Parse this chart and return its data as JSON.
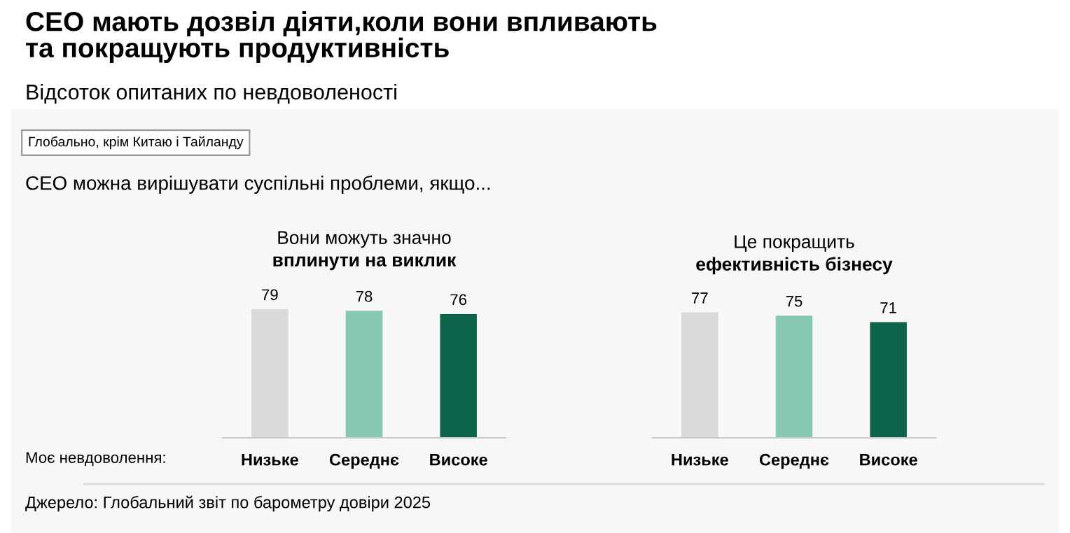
{
  "chart_data": [
    {
      "type": "other",
      "title": "СЕО мають дозвіл діяти,коли вони впливають\nта покращують продуктивність",
      "subtitle": "Відсоток опитаних по невдоволеності",
      "annotations": [
        "Глобально, крім Китаю і Тайланду",
        "СЕО можна вирішувати суспільні проблеми, якщо...",
        "Моє невдоволення:",
        "Джерело: Глобальний звіт по барометру довіри 2025"
      ]
    },
    {
      "type": "bar",
      "title": "Вони можуть значно\nвплинути на виклик",
      "categories": [
        "Низьке",
        "Середнє",
        "Високе"
      ],
      "values": [
        79,
        78,
        76
      ],
      "colors": [
        "#d9d9d9",
        "#86c8b4",
        "#0e634b"
      ],
      "data_labels": true,
      "tick_labels": "x"
    },
    {
      "type": "bar",
      "title": "Це покращить\nефективність бізнесу",
      "categories": [
        "Низьке",
        "Середнє",
        "Високе"
      ],
      "values": [
        77,
        75,
        71
      ],
      "colors": [
        "#d9d9d9",
        "#86c8b4",
        "#0e634b"
      ],
      "data_labels": true,
      "tick_labels": "x"
    }
  ]
}
